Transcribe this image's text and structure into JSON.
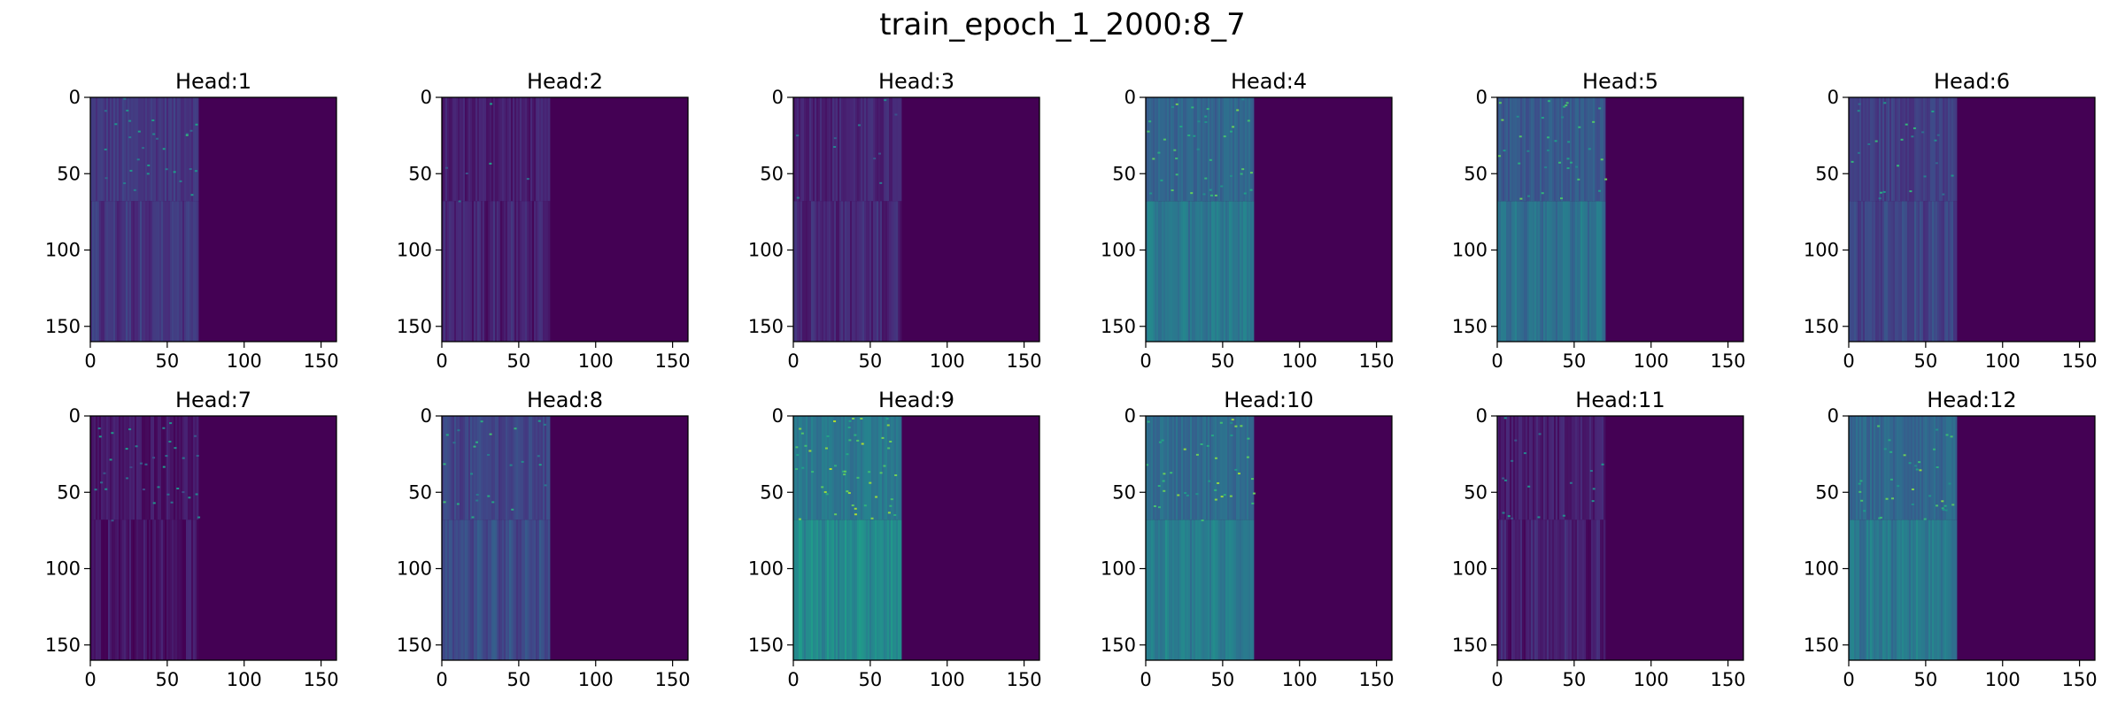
{
  "figure": {
    "title": "train_epoch_1_2000:8_7"
  },
  "chart_data": {
    "type": "heatmap",
    "title": "train_epoch_1_2000:8_7",
    "colormap": "viridis",
    "rows": 2,
    "cols": 6,
    "matrix_shape": [
      160,
      160
    ],
    "active_columns": [
      0,
      70
    ],
    "active_rows_with_bright_detail": [
      0,
      68
    ],
    "xlim": [
      0,
      160
    ],
    "ylim": [
      160,
      0
    ],
    "x_ticks": [
      "0",
      "50",
      "100",
      "150"
    ],
    "y_ticks": [
      "0",
      "50",
      "100",
      "150"
    ],
    "grid": false,
    "panels": [
      {
        "title": "Head:1",
        "top_level": 0.16,
        "bottom_level": 0.15,
        "speckle": 0.25
      },
      {
        "title": "Head:2",
        "top_level": 0.08,
        "bottom_level": 0.09,
        "speckle": 0.05
      },
      {
        "title": "Head:3",
        "top_level": 0.1,
        "bottom_level": 0.11,
        "speckle": 0.08
      },
      {
        "title": "Head:4",
        "top_level": 0.32,
        "bottom_level": 0.4,
        "speckle": 0.35
      },
      {
        "title": "Head:5",
        "top_level": 0.28,
        "bottom_level": 0.38,
        "speckle": 0.3
      },
      {
        "title": "Head:6",
        "top_level": 0.18,
        "bottom_level": 0.2,
        "speckle": 0.2
      },
      {
        "title": "Head:7",
        "top_level": 0.06,
        "bottom_level": 0.05,
        "speckle": 0.3
      },
      {
        "title": "Head:8",
        "top_level": 0.2,
        "bottom_level": 0.23,
        "speckle": 0.22
      },
      {
        "title": "Head:9",
        "top_level": 0.4,
        "bottom_level": 0.48,
        "speckle": 0.45
      },
      {
        "title": "Head:10",
        "top_level": 0.35,
        "bottom_level": 0.42,
        "speckle": 0.35
      },
      {
        "title": "Head:11",
        "top_level": 0.08,
        "bottom_level": 0.08,
        "speckle": 0.15
      },
      {
        "title": "Head:12",
        "top_level": 0.33,
        "bottom_level": 0.4,
        "speckle": 0.32
      }
    ]
  }
}
